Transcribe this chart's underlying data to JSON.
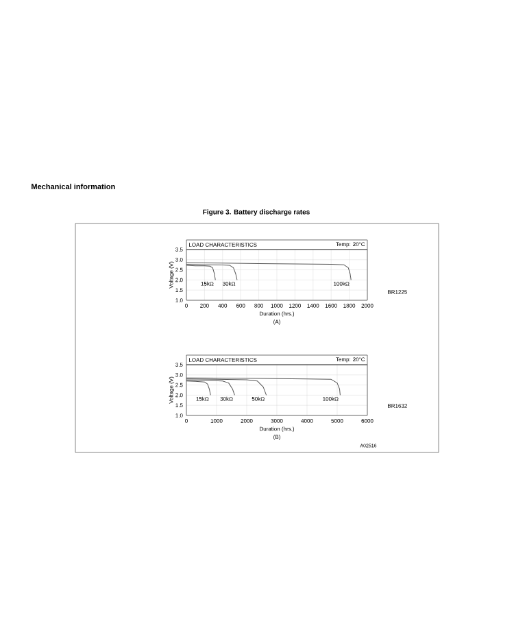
{
  "chart_data": [
    {
      "type": "line",
      "title": "LOAD CHARACTERISTICS",
      "subtitle": "Temp: 20°C",
      "xlabel": "Duration (hrs.)",
      "ylabel": "Voltage (V)",
      "annotations": [
        "Mechanical information",
        "Figure 3. Battery discharge rates",
        "BR1225",
        "(A)"
      ],
      "xlim": [
        0,
        2000
      ],
      "xticks": [
        0,
        200,
        400,
        600,
        800,
        1000,
        1200,
        1400,
        1600,
        1800,
        2000
      ],
      "ylim": [
        1.0,
        3.5
      ],
      "yticks": [
        {
          "value": 1,
          "label": "1.0"
        },
        1.5,
        {
          "value": 2,
          "label": "2.0"
        },
        2.5,
        {
          "value": 3,
          "label": "3.0"
        },
        3.5
      ],
      "grid": true,
      "legend": false,
      "marker": "none",
      "line_style": "solid",
      "series": [
        {
          "name": "15kΩ",
          "color": "#555555",
          "x": [
            0,
            100,
            200,
            260,
            290,
            310,
            320
          ],
          "values": [
            2.72,
            2.7,
            2.7,
            2.68,
            2.6,
            2.3,
            2.0
          ]
        },
        {
          "name": "30kΩ",
          "color": "#555555",
          "x": [
            0,
            200,
            400,
            480,
            520,
            545,
            560
          ],
          "values": [
            2.77,
            2.75,
            2.74,
            2.72,
            2.6,
            2.3,
            2.0
          ]
        },
        {
          "name": "100kΩ",
          "color": "#555555",
          "x": [
            0,
            400,
            800,
            1200,
            1600,
            1740,
            1790,
            1810,
            1820
          ],
          "values": [
            2.85,
            2.83,
            2.81,
            2.79,
            2.77,
            2.75,
            2.6,
            2.3,
            2.0
          ]
        }
      ]
    },
    {
      "type": "line",
      "title": "LOAD CHARACTERISTICS",
      "subtitle": "Temp: 20°C",
      "xlabel": "Duration (hrs.)",
      "ylabel": "Voltage (V)",
      "annotations": [
        "BR1632",
        "(B)",
        "A02516"
      ],
      "xlim": [
        0,
        6000
      ],
      "xticks": [
        0,
        1000,
        2000,
        3000,
        4000,
        5000,
        6000
      ],
      "ylim": [
        1.0,
        3.5
      ],
      "yticks": [
        {
          "value": 1,
          "label": "1.0"
        },
        1.5,
        {
          "value": 2,
          "label": "2.0"
        },
        2.5,
        {
          "value": 3,
          "label": "3.0"
        },
        3.5
      ],
      "grid": true,
      "legend": false,
      "marker": "none",
      "line_style": "solid",
      "series": [
        {
          "name": "15kΩ",
          "color": "#555555",
          "x": [
            0,
            300,
            600,
            700,
            760,
            800
          ],
          "values": [
            2.7,
            2.68,
            2.65,
            2.55,
            2.3,
            2.0
          ]
        },
        {
          "name": "30kΩ",
          "color": "#555555",
          "x": [
            0,
            600,
            1200,
            1400,
            1530,
            1600
          ],
          "values": [
            2.75,
            2.73,
            2.7,
            2.6,
            2.3,
            2.0
          ]
        },
        {
          "name": "50kΩ",
          "color": "#555555",
          "x": [
            0,
            1000,
            2000,
            2350,
            2550,
            2650
          ],
          "values": [
            2.8,
            2.78,
            2.76,
            2.7,
            2.4,
            2.0
          ]
        },
        {
          "name": "100kΩ",
          "color": "#555555",
          "x": [
            0,
            2000,
            4000,
            4800,
            5000,
            5080,
            5100
          ],
          "values": [
            2.85,
            2.83,
            2.8,
            2.78,
            2.6,
            2.3,
            2.0
          ]
        }
      ]
    }
  ]
}
